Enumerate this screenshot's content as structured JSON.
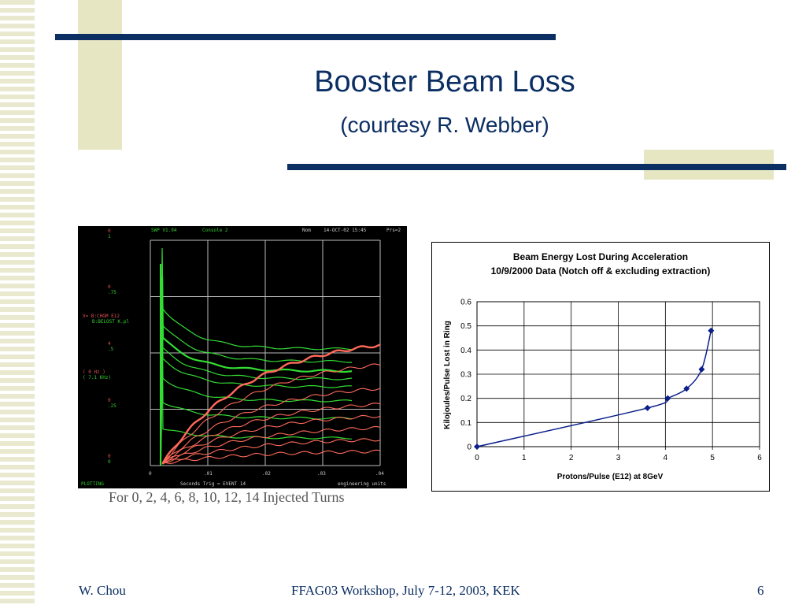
{
  "slide": {
    "title": "Booster Beam Loss",
    "subtitle": "(courtesy R. Webber)",
    "footer_left": "W. Chou",
    "footer_center": "FFAG03 Workshop, July 7-12, 2003, KEK",
    "footer_right": "6",
    "accent_color": "#0b2e63",
    "deco_color": "#e6e6c2"
  },
  "scope": {
    "header": {
      "left": "SWP V1.94",
      "mid": "Console 2",
      "right1": "Nom",
      "right2": "14-OCT-02 15:45",
      "right3": "Prs=2"
    },
    "left_labels": [
      "0",
      "1",
      "0",
      ".75",
      "V= B:CHGM E12",
      "B:BELOST K.pl",
      "4",
      ".5",
      "( 0 Hz )",
      "( 7.1 KHz)",
      "0",
      ".25",
      "0",
      "0"
    ],
    "x_ticks": [
      "0",
      ".01",
      ".02",
      ".03",
      ".04"
    ],
    "bottom_status": "PLOTTING",
    "bottom_mid": "Seconds  Trig = EVENT  14",
    "bottom_right": "engineering units",
    "caption": "For 0, 2, 4, 6, 8, 10, 12, 14 Injected Turns"
  },
  "chart_data": {
    "type": "line",
    "title": "Beam Energy Lost During Acceleration",
    "subtitle": "10/9/2000 Data (Notch off & excluding extraction)",
    "xlabel": "Protons/Pulse (E12) at 8GeV",
    "ylabel": "Kilojoules/Pulse Lost in Ring",
    "xlim": [
      0,
      6
    ],
    "ylim": [
      0,
      0.6
    ],
    "x_ticks": [
      "0",
      "1",
      "2",
      "3",
      "4",
      "5",
      "6"
    ],
    "y_ticks": [
      "0",
      "0.1",
      "0.2",
      "0.3",
      "0.4",
      "0.5",
      "0.6"
    ],
    "grid": true,
    "series": [
      {
        "color": "#0b1f8a",
        "x": [
          0,
          3.62,
          4.05,
          4.45,
          4.77,
          4.97
        ],
        "y": [
          0,
          0.16,
          0.2,
          0.24,
          0.32,
          0.48
        ]
      }
    ]
  }
}
